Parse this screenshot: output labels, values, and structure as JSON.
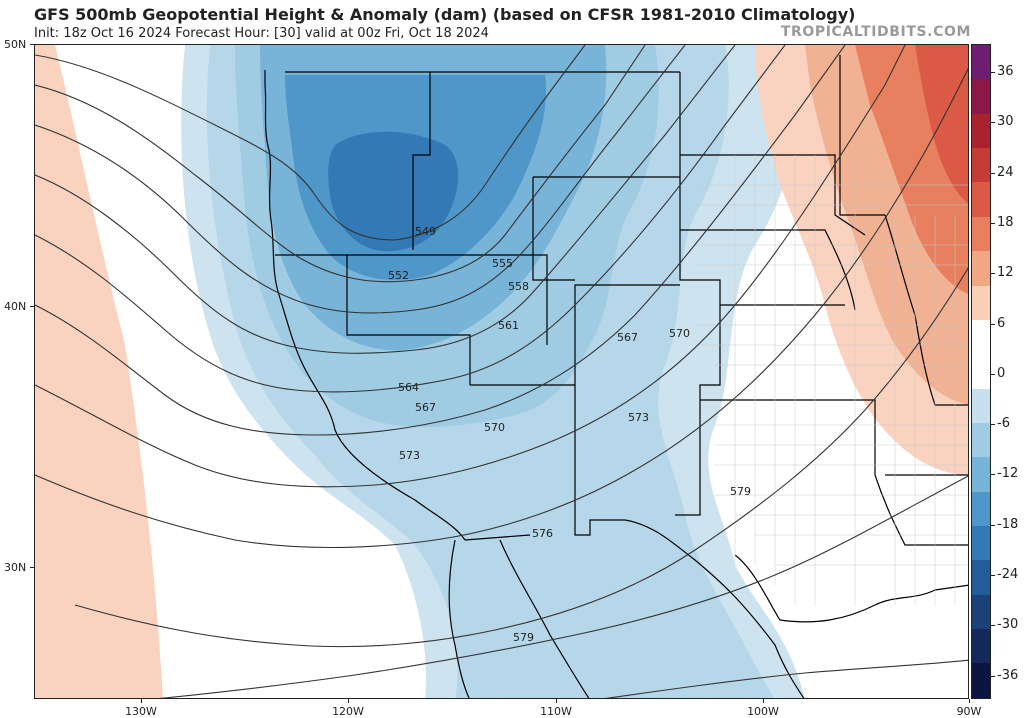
{
  "header": {
    "title": "GFS 500mb Geopotential Height & Anomaly (dam) (based on CFSR 1981-2010 Climatology)",
    "subtitle": "Init: 18z Oct 16 2024   Forecast Hour: [30]   valid at 00z Fri, Oct 18 2024",
    "brand": "TROPICALTIDBITS.COM"
  },
  "axes": {
    "lat_labels": [
      "50N",
      "40N",
      "30N"
    ],
    "lon_labels": [
      "130W",
      "120W",
      "110W",
      "100W",
      "90W"
    ]
  },
  "contour_labels": [
    "549",
    "552",
    "555",
    "558",
    "561",
    "564",
    "567",
    "570",
    "567",
    "570",
    "573",
    "573",
    "576",
    "579",
    "579"
  ],
  "colorbar": {
    "labels": [
      "36",
      "30",
      "24",
      "18",
      "12",
      "6",
      "0",
      "-6",
      "-12",
      "-18",
      "-24",
      "-30",
      "-36"
    ],
    "colors": [
      "#6e1e6e",
      "#8a1a45",
      "#a8232f",
      "#c43c36",
      "#db5a45",
      "#e8805f",
      "#f1a684",
      "#f9cfb7",
      "#ffffff",
      "#ffffff",
      "#c6e0ee",
      "#9fcbe3",
      "#78b3d8",
      "#4f96c9",
      "#3379b6",
      "#245c9a",
      "#1a4178",
      "#13295a",
      "#0b1540"
    ]
  },
  "colors": {
    "frame": "#222222",
    "contour": "#333333",
    "border": "#000000",
    "county": "#b8b8b8"
  }
}
